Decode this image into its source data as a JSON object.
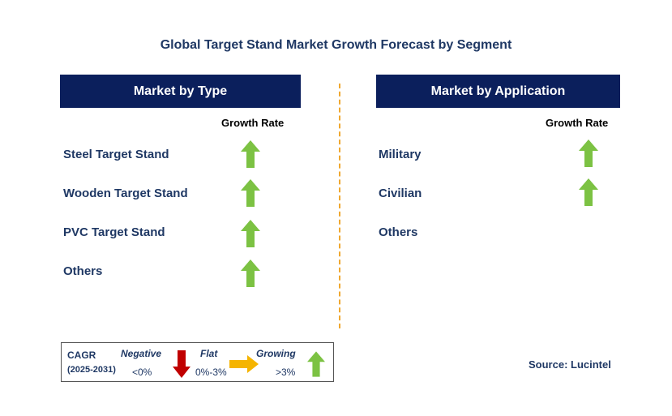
{
  "title": "Global Target Stand Market Growth Forecast by Segment",
  "left_panel": {
    "header": "Market by Type",
    "growth_label": "Growth Rate",
    "rows": [
      {
        "label": "Steel Target Stand",
        "trend": "growing"
      },
      {
        "label": "Wooden Target Stand",
        "trend": "growing"
      },
      {
        "label": "PVC Target Stand",
        "trend": "growing"
      },
      {
        "label": "Others",
        "trend": "growing"
      }
    ]
  },
  "right_panel": {
    "header": "Market by Application",
    "growth_label": "Growth Rate",
    "rows": [
      {
        "label": "Military",
        "trend": "growing"
      },
      {
        "label": "Civilian",
        "trend": "growing"
      },
      {
        "label": "Others",
        "trend": "none"
      }
    ]
  },
  "legend": {
    "cagr": "CAGR",
    "period": "(2025-2031)",
    "negative": "Negative",
    "negative_range": "<0%",
    "flat": "Flat",
    "flat_range": "0%-3%",
    "growing": "Growing",
    "growing_range": ">3%"
  },
  "source": "Source: Lucintel",
  "colors": {
    "header_bg": "#0b1f5c",
    "growing": "#7cc243",
    "negative": "#c00000",
    "flat": "#f5b400",
    "divider": "#f0a830"
  },
  "icons": {
    "growing": "up-arrow-icon",
    "negative": "down-arrow-icon",
    "flat": "right-arrow-icon"
  }
}
